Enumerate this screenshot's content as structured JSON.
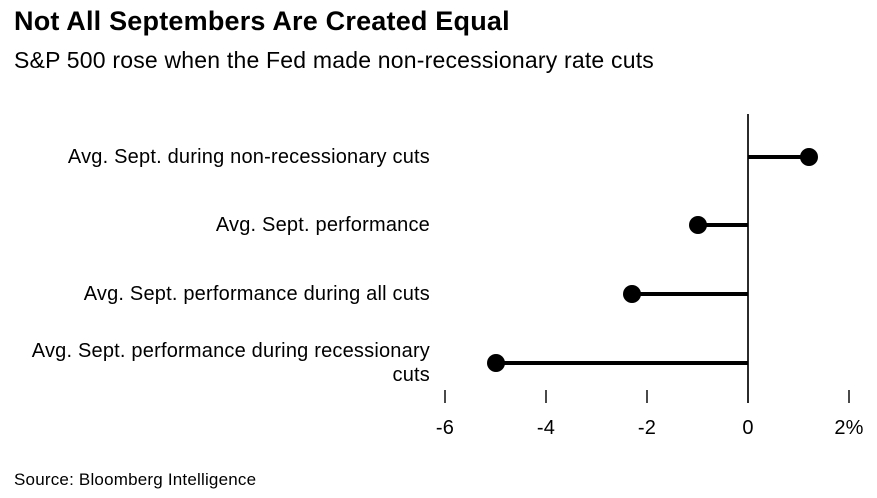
{
  "header": {
    "title": "Not All Septembers Are Created Equal",
    "subtitle": "S&P 500 rose when the Fed made non-recessionary rate cuts"
  },
  "chart_data": {
    "type": "bar",
    "variant": "lollipop",
    "orientation": "horizontal",
    "title": "Not All Septembers Are Created Equal",
    "subtitle": "S&P 500 rose when the Fed made non-recessionary rate cuts",
    "categories": [
      "Avg. Sept. during non-recessionary cuts",
      "Avg. Sept. performance",
      "Avg. Sept. performance during all cuts",
      "Avg. Sept. performance during recessionary cuts"
    ],
    "values": [
      1.2,
      -1.0,
      -2.3,
      -5.0
    ],
    "unit": "%",
    "baseline": 0,
    "xlim": [
      -6.9,
      2.5
    ],
    "xticks": [
      -6,
      -4,
      -2,
      0,
      2
    ],
    "xtick_labels": [
      "-6",
      "-4",
      "-2",
      "0",
      "2%"
    ],
    "grid": false,
    "legend": null,
    "dot_color": "#000000",
    "stem_color": "#000000",
    "axis_color": "#2b2b2b"
  },
  "footer": {
    "source": "Source: Bloomberg Intelligence"
  }
}
